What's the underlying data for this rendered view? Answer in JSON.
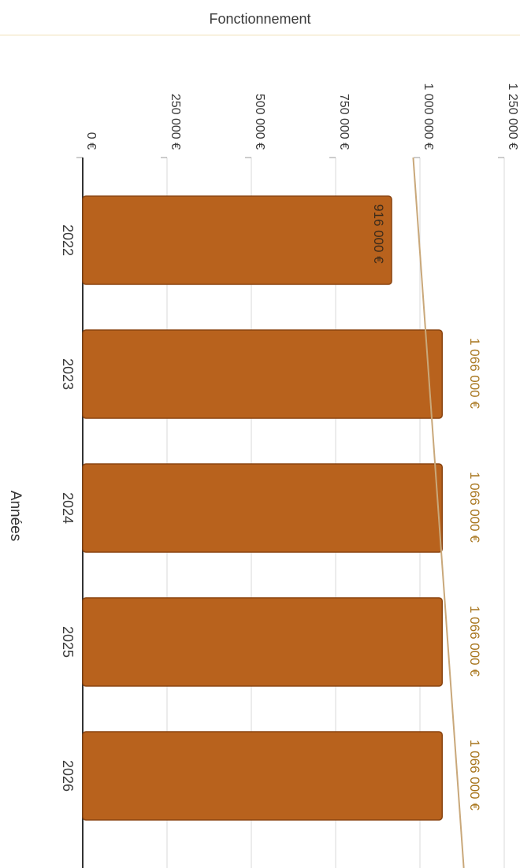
{
  "header": {
    "title": "Fonctionnement"
  },
  "chart_data": {
    "type": "bar",
    "orientation": "horizontal",
    "title": "Fonctionnement",
    "xlabel": "",
    "ylabel": "Années",
    "categories": [
      "2022",
      "2023",
      "2024",
      "2025",
      "2026"
    ],
    "values": [
      916000,
      1066000,
      1066000,
      1066000,
      1066000
    ],
    "value_labels": [
      "916 000 €",
      "1 066 000 €",
      "1 066 000 €",
      "1 066 000 €",
      "1 066 000 €"
    ],
    "xlim": [
      0,
      1250000
    ],
    "ticks": [
      0,
      250000,
      500000,
      750000,
      1000000,
      1250000
    ],
    "tick_labels": [
      "0 €",
      "250 000 €",
      "500 000 €",
      "750 000 €",
      "1 000 000 €",
      "1 250 000 €"
    ],
    "trend_line": {
      "from_value": 980000,
      "to_value": 1130000
    },
    "grid": true,
    "colors": {
      "bar": "#b8621d",
      "bar_border": "#8a4410",
      "trend": "#c9a87a",
      "label_inside": "#3a2a1a",
      "label_outside": "#a8761e",
      "grid": "#d8d8d8",
      "axis": "#333333"
    }
  }
}
